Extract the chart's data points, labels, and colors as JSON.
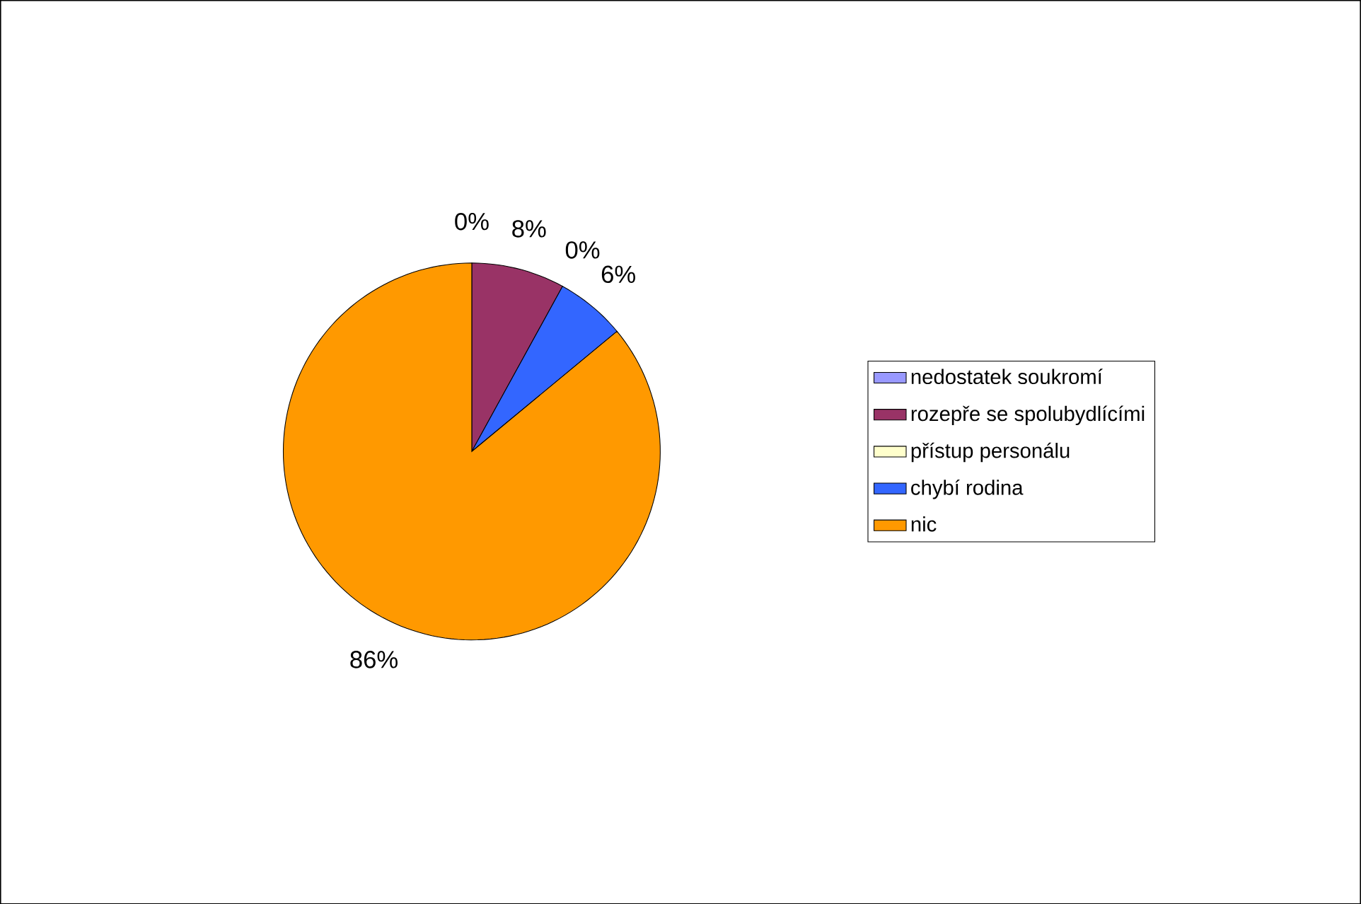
{
  "chart_data": {
    "type": "pie",
    "categories": [
      "nedostatek soukromí",
      "rozepře se spolubydlícími",
      "přístup personálu",
      "chybí rodina",
      "nic"
    ],
    "values": [
      0,
      8,
      0,
      6,
      86
    ],
    "colors": [
      "#9999ff",
      "#993366",
      "#ffffcc",
      "#3366ff",
      "#ff9900"
    ],
    "value_labels": [
      "0%",
      "8%",
      "0%",
      "6%",
      "86%"
    ],
    "legend": "right"
  }
}
